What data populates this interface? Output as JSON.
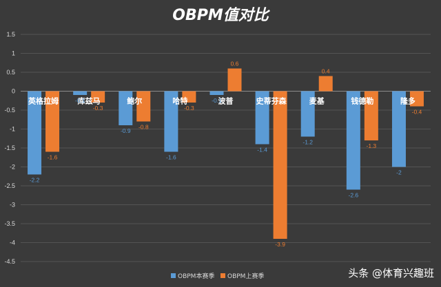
{
  "chart_data": {
    "type": "bar",
    "title": "OBPM值对比",
    "categories": [
      "英格拉姆",
      "库兹马",
      "鲍尔",
      "哈特",
      "波普",
      "史蒂芬森",
      "麦基",
      "钱德勒",
      "隆多"
    ],
    "series": [
      {
        "name": "OBPM本赛季",
        "values": [
          -2.2,
          -0.1,
          -0.9,
          -1.6,
          -0.1,
          -1.4,
          -1.2,
          -2.6,
          -2
        ],
        "color": "#5b9bd5"
      },
      {
        "name": "OBPM上赛季",
        "values": [
          -1.6,
          -0.3,
          -0.8,
          -0.3,
          0.6,
          -3.9,
          0.4,
          -1.3,
          -0.4
        ],
        "color": "#ed7d31"
      }
    ],
    "ylim": [
      -4.5,
      1.5
    ],
    "yticks": [
      "1.5",
      "1",
      "0.5",
      "0",
      "-0.5",
      "-1",
      "-1.5",
      "-2",
      "-2.5",
      "-3",
      "-3.5",
      "-4",
      "-4.5"
    ],
    "grid": true,
    "legend_position": "bottom"
  },
  "watermark": "头条 @体育兴趣班"
}
